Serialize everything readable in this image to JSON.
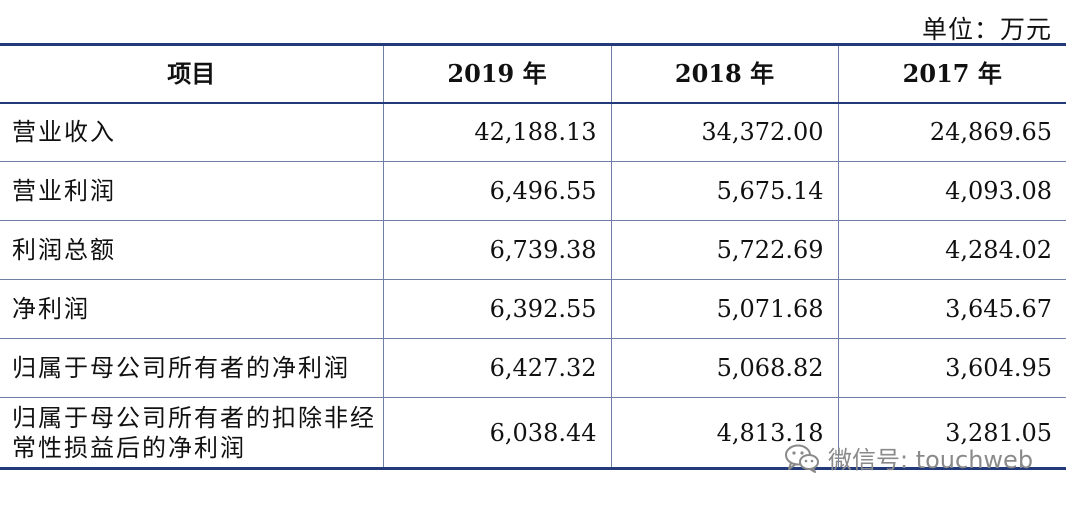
{
  "unit_label": "单位：万元",
  "table": {
    "headers": [
      "项目",
      "2019 年",
      "2018 年",
      "2017 年"
    ],
    "rows": [
      {
        "item": "营业收入",
        "values": [
          "42,188.13",
          "34,372.00",
          "24,869.65"
        ]
      },
      {
        "item": "营业利润",
        "values": [
          "6,496.55",
          "5,675.14",
          "4,093.08"
        ]
      },
      {
        "item": "利润总额",
        "values": [
          "6,739.38",
          "5,722.69",
          "4,284.02"
        ]
      },
      {
        "item": "净利润",
        "values": [
          "6,392.55",
          "5,071.68",
          "3,645.67"
        ]
      },
      {
        "item": "归属于母公司所有者的净利润",
        "values": [
          "6,427.32",
          "5,068.82",
          "3,604.95"
        ]
      },
      {
        "item": "归属于母公司所有者的扣除非经常性损益后的净利润",
        "values": [
          "6,038.44",
          "4,813.18",
          "3,281.05"
        ]
      }
    ]
  },
  "watermark": {
    "icon": "wechat-icon",
    "text": "微信号: touchweb"
  }
}
